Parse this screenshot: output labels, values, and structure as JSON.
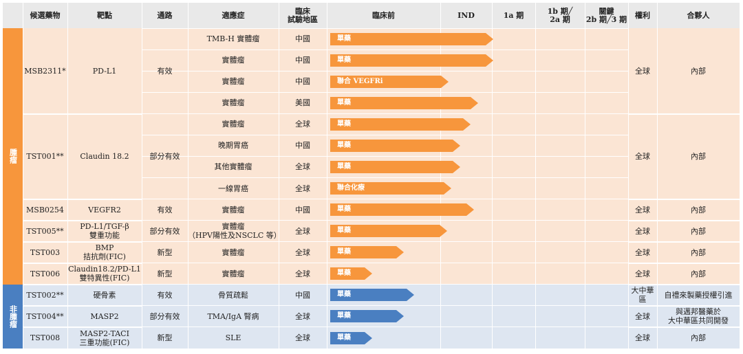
{
  "headers": {
    "candidate": "候選藥物",
    "target": "靶點",
    "pathway": "通路",
    "indication": "適應症",
    "region": "臨床\n試驗地區",
    "preclinical": "臨床前",
    "ind": "IND",
    "phase1a": "1a 期",
    "phase1b2a": "1b 期╱\n2a 期",
    "pivotal": "關鍵\n2b 期╱3 期",
    "rights": "權利",
    "partner": "合夥人"
  },
  "groups": [
    {
      "label": "腫瘤",
      "color": "#f7963c"
    },
    {
      "label": "非腫瘤",
      "color": "#4a7fc1"
    }
  ],
  "colors": {
    "orange": "#f7963c",
    "blue": "#4a7fc1",
    "orange_bg": "#fbe5d4",
    "blue_bg": "#dee6f1",
    "header_bg": "#e9e9e9"
  },
  "drugs": [
    {
      "name": "MSB2311*",
      "target": "PD-L1",
      "pathway": "有效",
      "rights": "全球",
      "partner": "內部"
    },
    {
      "name": "TST001**",
      "target": "Claudin 18.2",
      "pathway": "部分有效",
      "rights": "全球",
      "partner": "內部"
    },
    {
      "name": "MSB0254",
      "target": "VEGFR2",
      "pathway": "有效",
      "rights": "全球",
      "partner": "內部"
    },
    {
      "name": "TST005**",
      "target": "PD-L1/TGF-β\n雙重功能",
      "pathway": "部分有效",
      "rights": "全球",
      "partner": "內部"
    },
    {
      "name": "TST003",
      "target": "BMP\n拮抗劑(FIC)",
      "pathway": "新型",
      "rights": "全球",
      "partner": "內部"
    },
    {
      "name": "TST006",
      "target": "Claudin18.2/PD-L1\n雙特異性(FIC)",
      "pathway": "新型",
      "rights": "全球",
      "partner": "內部"
    },
    {
      "name": "TST002**",
      "target": "硬骨素",
      "pathway": "有效",
      "rights": "大中華區",
      "partner": "自禮來製藥授權引進"
    },
    {
      "name": "TST004**",
      "target": "MASP2",
      "pathway": "部分有效",
      "rights": "全球",
      "partner": "與邁邦醫藥於\n大中華區共同開發"
    },
    {
      "name": "TST008",
      "target": "MASP2-TACI\n三重功能(FIC)",
      "pathway": "新型",
      "rights": "全球",
      "partner": "內部"
    }
  ],
  "rows": [
    {
      "indication": "TMB-H 實體瘤",
      "region": "中國",
      "bar_label": "單藥",
      "progress": 0.545,
      "color": "orange"
    },
    {
      "indication": "實體瘤",
      "region": "中國",
      "bar_label": "單藥",
      "progress": 0.545,
      "color": "orange"
    },
    {
      "indication": "實體瘤",
      "region": "中國",
      "bar_label": "聯合 VEGFRi",
      "progress": 0.395,
      "color": "orange"
    },
    {
      "indication": "實體瘤",
      "region": "美國",
      "bar_label": "單藥",
      "progress": 0.495,
      "color": "orange"
    },
    {
      "indication": "實體瘤",
      "region": "全球",
      "bar_label": "單藥",
      "progress": 0.47,
      "color": "orange"
    },
    {
      "indication": "晚期胃癌",
      "region": "中國",
      "bar_label": "單藥",
      "progress": 0.435,
      "color": "orange"
    },
    {
      "indication": "其他實體瘤",
      "region": "全球",
      "bar_label": "單藥",
      "progress": 0.435,
      "color": "orange"
    },
    {
      "indication": "一線胃癌",
      "region": "全球",
      "bar_label": "聯合化療",
      "progress": 0.405,
      "color": "orange"
    },
    {
      "indication": "實體瘤",
      "region": "中國",
      "bar_label": "單藥",
      "progress": 0.48,
      "color": "orange"
    },
    {
      "indication": "實體瘤\n（HPV陽性及NSCLC 等）",
      "region": "全球",
      "bar_label": "單藥",
      "progress": 0.39,
      "color": "orange"
    },
    {
      "indication": "實體瘤",
      "region": "全球",
      "bar_label": "單藥",
      "progress": 0.245,
      "color": "orange"
    },
    {
      "indication": "實體瘤",
      "region": "全球",
      "bar_label": "單藥",
      "progress": 0.14,
      "color": "orange"
    },
    {
      "indication": "骨質疏鬆",
      "region": "中國",
      "bar_label": "單藥",
      "progress": 0.28,
      "color": "blue"
    },
    {
      "indication": "TMA/IgA 腎病",
      "region": "全球",
      "bar_label": "單藥",
      "progress": 0.245,
      "color": "blue"
    },
    {
      "indication": "SLE",
      "region": "全球",
      "bar_label": "單藥",
      "progress": 0.14,
      "color": "blue"
    }
  ]
}
